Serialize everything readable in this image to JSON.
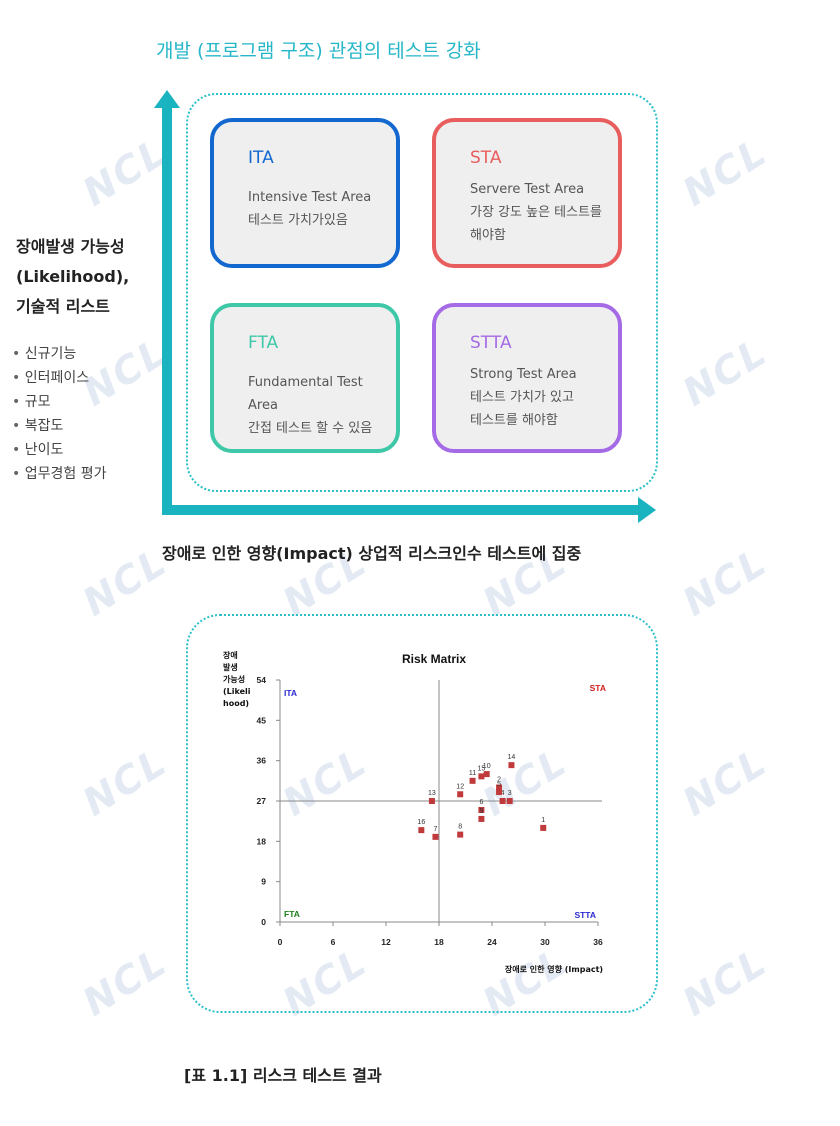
{
  "title": "개발 (프로그램 구조) 관점의 테스트 강화",
  "watermark": "NCL",
  "quadrants": {
    "ita": {
      "name": "ITA",
      "line1": "Intensive Test Area",
      "line2": "테스트 가치가있음",
      "line3": "",
      "color": "#1368d0"
    },
    "sta": {
      "name": "STA",
      "line1": "Servere Test Area",
      "line2": "가장 강도 높은 테스트를",
      "line3": "해야함",
      "color": "#e85e5e"
    },
    "fta": {
      "name": "FTA",
      "line1": "Fundamental Test Area",
      "line2": "간접 테스트 할 수 있음",
      "line3": "",
      "color": "#3fc8a8"
    },
    "stta": {
      "name": "STTA",
      "line1": "Strong Test Area",
      "line2": "테스트 가치가 있고",
      "line3": "테스트를 해야함",
      "color": "#a56be6"
    }
  },
  "left_axis": {
    "line1": "장애발생 가능성",
    "line2": "(Likelihood),",
    "line3": "기술적 리스트",
    "items": [
      "신규기능",
      "인터페이스",
      "규모",
      "복잡도",
      "난이도",
      "업무경험 평가"
    ]
  },
  "bottom_axis_label": "장애로 인한 영향(Impact) 상업적 리스크인수 테스트에 집중",
  "caption": "[표 1.1] 리스크 테스트 결과",
  "axis_color": "#1ab4c0",
  "chart_data": {
    "type": "scatter",
    "title": "Risk Matrix",
    "ylabel_lines": [
      "장애",
      "발생",
      "가능성",
      "(Likeli",
      "hood)"
    ],
    "xlabel": "장애로 인한 영향 (Impact)",
    "xlim": [
      0,
      36
    ],
    "ylim": [
      0,
      54
    ],
    "xticks": [
      0,
      6,
      12,
      18,
      24,
      30,
      36
    ],
    "yticks": [
      0,
      9,
      18,
      27,
      36,
      45,
      54
    ],
    "divider_x": 18,
    "divider_y": 27,
    "quadrant_labels": [
      {
        "text": "ITA",
        "color": "#2a2ad0",
        "pos": "top-left"
      },
      {
        "text": "STA",
        "color": "#d02020",
        "pos": "top-right"
      },
      {
        "text": "FTA",
        "color": "#208020",
        "pos": "bottom-left"
      },
      {
        "text": "STTA",
        "color": "#2a2ad0",
        "pos": "bottom-right"
      }
    ],
    "marker_color": "#c0393b",
    "points": [
      {
        "label": "1",
        "x": 29.8,
        "y": 21
      },
      {
        "label": "2",
        "x": 24.8,
        "y": 30
      },
      {
        "label": "3",
        "x": 26.0,
        "y": 27
      },
      {
        "label": "4",
        "x": 25.2,
        "y": 27
      },
      {
        "label": "5",
        "x": 24.8,
        "y": 29
      },
      {
        "label": "6",
        "x": 22.8,
        "y": 25
      },
      {
        "label": "7",
        "x": 17.6,
        "y": 19
      },
      {
        "label": "8",
        "x": 20.4,
        "y": 19.5
      },
      {
        "label": "9",
        "x": 22.8,
        "y": 23
      },
      {
        "label": "10",
        "x": 23.4,
        "y": 33
      },
      {
        "label": "11",
        "x": 21.8,
        "y": 31.5
      },
      {
        "label": "12",
        "x": 20.4,
        "y": 28.5
      },
      {
        "label": "13",
        "x": 17.2,
        "y": 27
      },
      {
        "label": "14",
        "x": 26.2,
        "y": 35
      },
      {
        "label": "15",
        "x": 22.8,
        "y": 32.5
      },
      {
        "label": "16",
        "x": 16.0,
        "y": 20.5
      }
    ]
  }
}
